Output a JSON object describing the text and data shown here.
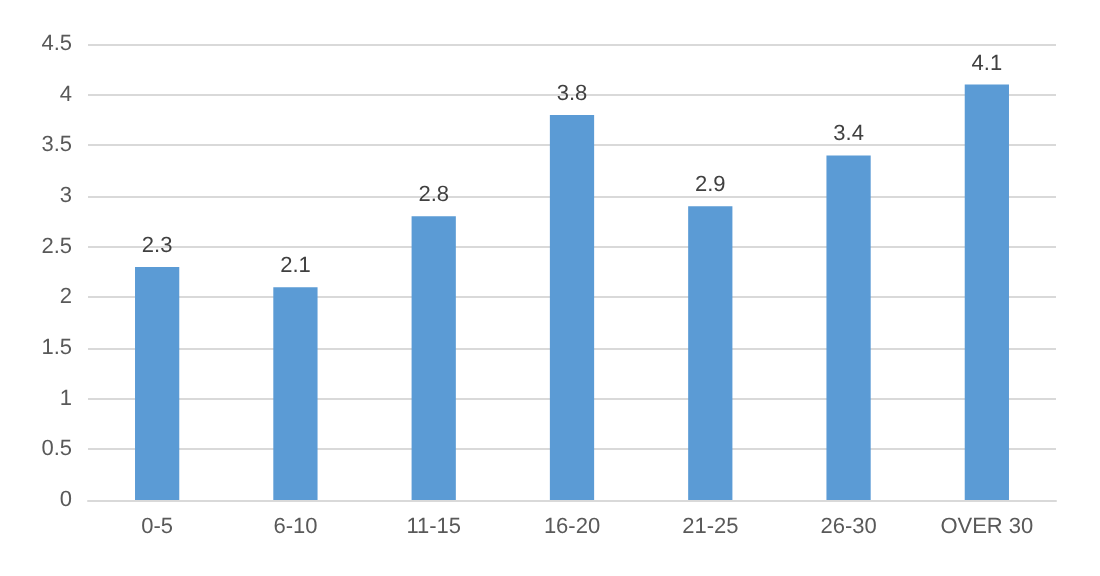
{
  "chart_data": {
    "type": "bar",
    "categories": [
      "0-5",
      "6-10",
      "11-15",
      "16-20",
      "21-25",
      "26-30",
      "OVER 30"
    ],
    "values": [
      2.3,
      2.1,
      2.8,
      3.8,
      2.9,
      3.4,
      4.1
    ],
    "color": "#5b9bd5",
    "ylim": [
      0,
      4.5
    ],
    "yticks": [
      0,
      0.5,
      1,
      1.5,
      2,
      2.5,
      3,
      3.5,
      4,
      4.5
    ],
    "grid": "y",
    "data_labels": true
  }
}
